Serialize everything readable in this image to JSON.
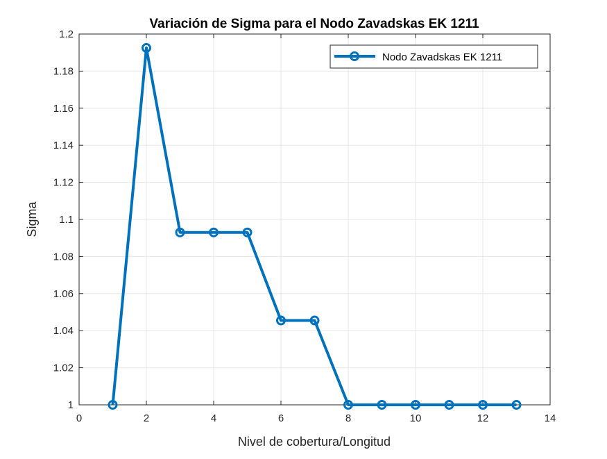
{
  "chart_data": {
    "type": "line",
    "title": "Variación de Sigma para el Nodo Zavadskas EK 1211",
    "xlabel": "Nivel de cobertura/Longitud",
    "ylabel": "Sigma",
    "xlim": [
      0,
      14
    ],
    "ylim": [
      1,
      1.2
    ],
    "xticks": [
      0,
      2,
      4,
      6,
      8,
      10,
      12,
      14
    ],
    "yticks": [
      1,
      1.02,
      1.04,
      1.06,
      1.08,
      1.1,
      1.12,
      1.14,
      1.16,
      1.18,
      1.2
    ],
    "xtick_labels": [
      "0",
      "2",
      "4",
      "6",
      "8",
      "10",
      "12",
      "14"
    ],
    "ytick_labels": [
      "1",
      "1.02",
      "1.04",
      "1.06",
      "1.08",
      "1.1",
      "1.12",
      "1.14",
      "1.16",
      "1.18",
      "1.2"
    ],
    "grid": true,
    "legend_position": "top-right",
    "series": [
      {
        "name": "Nodo Zavadskas EK 1211",
        "color": "#0072BD",
        "marker": "circle",
        "x": [
          1,
          2,
          3,
          4,
          5,
          6,
          7,
          8,
          9,
          10,
          11,
          12,
          13
        ],
        "y": [
          1.0,
          1.1925,
          1.093,
          1.093,
          1.093,
          1.0455,
          1.0455,
          1.0,
          1.0,
          1.0,
          1.0,
          1.0,
          1.0
        ]
      }
    ]
  }
}
